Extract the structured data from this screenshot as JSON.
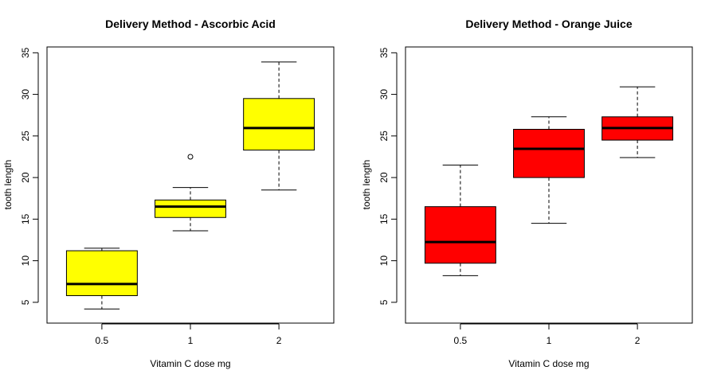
{
  "chart_data": [
    {
      "type": "boxplot",
      "title": "Delivery Method - Ascorbic Acid",
      "xlabel": "Vitamin C dose mg",
      "ylabel": "tooth length",
      "categories": [
        "0.5",
        "1",
        "2"
      ],
      "ylim": [
        2.5,
        35.7
      ],
      "yticks": [
        "5",
        "10",
        "15",
        "20",
        "25",
        "30",
        "35"
      ],
      "fill": "#ffff00",
      "boxes": [
        {
          "min": 4.2,
          "q1": 5.8,
          "median": 7.2,
          "q3": 11.2,
          "max": 11.5,
          "outliers": []
        },
        {
          "min": 13.6,
          "q1": 15.2,
          "median": 16.5,
          "q3": 17.3,
          "max": 18.8,
          "outliers": [
            22.5
          ]
        },
        {
          "min": 18.5,
          "q1": 23.3,
          "median": 25.95,
          "q3": 29.5,
          "max": 33.9,
          "outliers": []
        }
      ]
    },
    {
      "type": "boxplot",
      "title": "Delivery Method - Orange Juice",
      "xlabel": "Vitamin C dose mg",
      "ylabel": "tooth length",
      "categories": [
        "0.5",
        "1",
        "2"
      ],
      "ylim": [
        2.5,
        35.7
      ],
      "yticks": [
        "5",
        "10",
        "15",
        "20",
        "25",
        "30",
        "35"
      ],
      "fill": "#ff0000",
      "boxes": [
        {
          "min": 8.2,
          "q1": 9.7,
          "median": 12.25,
          "q3": 16.5,
          "max": 21.5,
          "outliers": []
        },
        {
          "min": 14.5,
          "q1": 20.0,
          "median": 23.45,
          "q3": 25.8,
          "max": 27.3,
          "outliers": []
        },
        {
          "min": 22.4,
          "q1": 24.5,
          "median": 25.95,
          "q3": 27.3,
          "max": 30.9,
          "outliers": []
        }
      ]
    }
  ]
}
